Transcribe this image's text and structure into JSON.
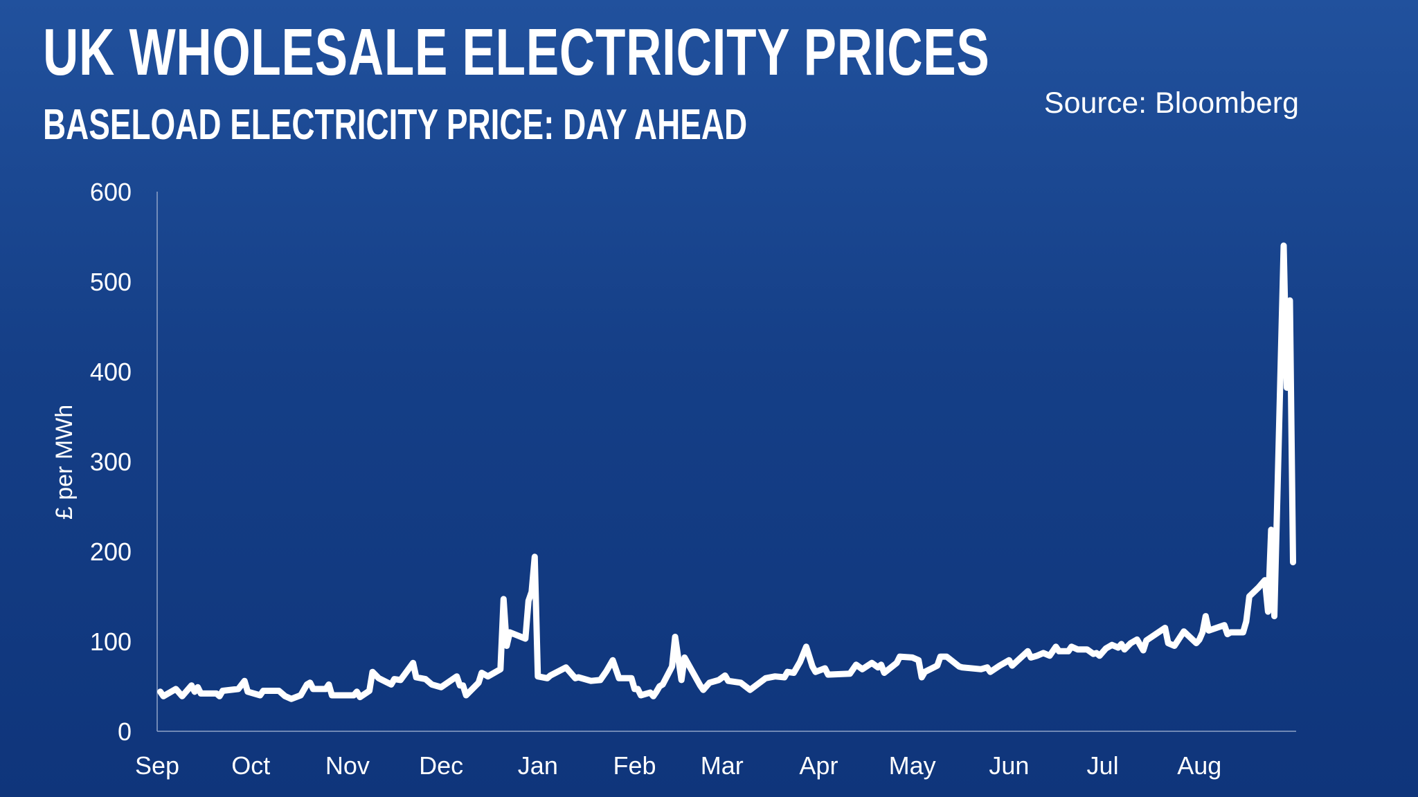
{
  "header": {
    "title": "UK WHOLESALE ELECTRICITY PRICES",
    "subtitle": "BASELOAD ELECTRICITY PRICE: DAY AHEAD",
    "source": "Source: Bloomberg"
  },
  "colors": {
    "background_top": "#21519d",
    "background_bottom": "#0f357b",
    "line": "#ffffff",
    "axis": "#8fa3c8"
  },
  "chart_data": {
    "type": "line",
    "title": "UK WHOLESALE ELECTRICITY PRICES",
    "subtitle": "BASELOAD ELECTRICITY PRICE: DAY AHEAD",
    "ylabel": "£ per MWh",
    "xlabel": "",
    "ylim": [
      0,
      600
    ],
    "xlim": [
      "2021-09-01",
      "2022-09-01"
    ],
    "yticks": [
      "0",
      "100",
      "200",
      "300",
      "400",
      "500",
      "600"
    ],
    "yticks_values": [
      0,
      100,
      200,
      300,
      400,
      500,
      600
    ],
    "xticks": [
      "Sep",
      "Oct",
      "Nov",
      "Dec",
      "Jan",
      "Feb",
      "Mar",
      "Apr",
      "May",
      "Jun",
      "Jul",
      "Aug"
    ],
    "xticks_dates": [
      "2021-09-01",
      "2021-10-01",
      "2021-11-01",
      "2021-12-01",
      "2022-01-01",
      "2022-02-01",
      "2022-03-01",
      "2022-04-01",
      "2022-05-01",
      "2022-06-01",
      "2022-07-01",
      "2022-08-01"
    ],
    "grid": false,
    "series": [
      {
        "points": [
          [
            "2021-09-02",
            44
          ],
          [
            "2021-09-03",
            39
          ],
          [
            "2021-09-07",
            47
          ],
          [
            "2021-09-09",
            39
          ],
          [
            "2021-09-12",
            51
          ],
          [
            "2021-09-13",
            44
          ],
          [
            "2021-09-14",
            49
          ],
          [
            "2021-09-15",
            42
          ],
          [
            "2021-09-20",
            42
          ],
          [
            "2021-09-21",
            39
          ],
          [
            "2021-09-22",
            45
          ],
          [
            "2021-09-27",
            47
          ],
          [
            "2021-09-29",
            56
          ],
          [
            "2021-09-30",
            44
          ],
          [
            "2021-10-04",
            40
          ],
          [
            "2021-10-05",
            45
          ],
          [
            "2021-10-10",
            45
          ],
          [
            "2021-10-12",
            39
          ],
          [
            "2021-10-14",
            36
          ],
          [
            "2021-10-17",
            40
          ],
          [
            "2021-10-19",
            52
          ],
          [
            "2021-10-20",
            54
          ],
          [
            "2021-10-21",
            47
          ],
          [
            "2021-10-25",
            47
          ],
          [
            "2021-10-26",
            52
          ],
          [
            "2021-10-27",
            40
          ],
          [
            "2021-11-03",
            40
          ],
          [
            "2021-11-04",
            44
          ],
          [
            "2021-11-05",
            38
          ],
          [
            "2021-11-08",
            45
          ],
          [
            "2021-11-09",
            66
          ],
          [
            "2021-11-11",
            59
          ],
          [
            "2021-11-15",
            52
          ],
          [
            "2021-11-16",
            58
          ],
          [
            "2021-11-18",
            57
          ],
          [
            "2021-11-22",
            76
          ],
          [
            "2021-11-23",
            60
          ],
          [
            "2021-11-26",
            58
          ],
          [
            "2021-11-28",
            52
          ],
          [
            "2021-12-01",
            49
          ],
          [
            "2021-12-06",
            61
          ],
          [
            "2021-12-07",
            51
          ],
          [
            "2021-12-08",
            51
          ],
          [
            "2021-12-09",
            40
          ],
          [
            "2021-12-13",
            54
          ],
          [
            "2021-12-14",
            65
          ],
          [
            "2021-12-16",
            61
          ],
          [
            "2021-12-20",
            69
          ],
          [
            "2021-12-21",
            147
          ],
          [
            "2021-12-22",
            95
          ],
          [
            "2021-12-23",
            110
          ],
          [
            "2021-12-28",
            103
          ],
          [
            "2021-12-29",
            145
          ],
          [
            "2021-12-30",
            155
          ],
          [
            "2021-12-31",
            194
          ],
          [
            "2022-01-01",
            61
          ],
          [
            "2022-01-04",
            59
          ],
          [
            "2022-01-05",
            62
          ],
          [
            "2022-01-10",
            71
          ],
          [
            "2022-01-11",
            67
          ],
          [
            "2022-01-13",
            59
          ],
          [
            "2022-01-14",
            60
          ],
          [
            "2022-01-18",
            56
          ],
          [
            "2022-01-21",
            57
          ],
          [
            "2022-01-23",
            67
          ],
          [
            "2022-01-25",
            79
          ],
          [
            "2022-01-27",
            59
          ],
          [
            "2022-01-31",
            59
          ],
          [
            "2022-02-01",
            47
          ],
          [
            "2022-02-02",
            47
          ],
          [
            "2022-02-03",
            40
          ],
          [
            "2022-02-06",
            43
          ],
          [
            "2022-02-07",
            39
          ],
          [
            "2022-02-08",
            44
          ],
          [
            "2022-02-09",
            50
          ],
          [
            "2022-02-10",
            52
          ],
          [
            "2022-02-13",
            72
          ],
          [
            "2022-02-14",
            105
          ],
          [
            "2022-02-16",
            57
          ],
          [
            "2022-02-17",
            82
          ],
          [
            "2022-02-22",
            51
          ],
          [
            "2022-02-23",
            46
          ],
          [
            "2022-02-25",
            54
          ],
          [
            "2022-02-28",
            57
          ],
          [
            "2022-03-02",
            62
          ],
          [
            "2022-03-03",
            56
          ],
          [
            "2022-03-07",
            54
          ],
          [
            "2022-03-10",
            46
          ],
          [
            "2022-03-15",
            59
          ],
          [
            "2022-03-18",
            61
          ],
          [
            "2022-03-21",
            60
          ],
          [
            "2022-03-22",
            66
          ],
          [
            "2022-03-24",
            65
          ],
          [
            "2022-03-26",
            77
          ],
          [
            "2022-03-28",
            94
          ],
          [
            "2022-03-30",
            72
          ],
          [
            "2022-03-31",
            66
          ],
          [
            "2022-04-03",
            70
          ],
          [
            "2022-04-04",
            63
          ],
          [
            "2022-04-11",
            64
          ],
          [
            "2022-04-13",
            74
          ],
          [
            "2022-04-15",
            69
          ],
          [
            "2022-04-18",
            76
          ],
          [
            "2022-04-20",
            71
          ],
          [
            "2022-04-21",
            74
          ],
          [
            "2022-04-22",
            65
          ],
          [
            "2022-04-26",
            76
          ],
          [
            "2022-04-27",
            83
          ],
          [
            "2022-05-01",
            82
          ],
          [
            "2022-05-03",
            79
          ],
          [
            "2022-05-04",
            60
          ],
          [
            "2022-05-05",
            66
          ],
          [
            "2022-05-09",
            73
          ],
          [
            "2022-05-10",
            83
          ],
          [
            "2022-05-12",
            83
          ],
          [
            "2022-05-16",
            72
          ],
          [
            "2022-05-17",
            71
          ],
          [
            "2022-05-23",
            69
          ],
          [
            "2022-05-25",
            71
          ],
          [
            "2022-05-26",
            66
          ],
          [
            "2022-05-29",
            73
          ],
          [
            "2022-06-01",
            79
          ],
          [
            "2022-06-02",
            73
          ],
          [
            "2022-06-07",
            89
          ],
          [
            "2022-06-08",
            82
          ],
          [
            "2022-06-10",
            84
          ],
          [
            "2022-06-12",
            87
          ],
          [
            "2022-06-14",
            84
          ],
          [
            "2022-06-16",
            94
          ],
          [
            "2022-06-17",
            89
          ],
          [
            "2022-06-20",
            89
          ],
          [
            "2022-06-21",
            94
          ],
          [
            "2022-06-23",
            91
          ],
          [
            "2022-06-26",
            91
          ],
          [
            "2022-06-28",
            86
          ],
          [
            "2022-06-29",
            87
          ],
          [
            "2022-06-30",
            84
          ],
          [
            "2022-07-02",
            92
          ],
          [
            "2022-07-04",
            96
          ],
          [
            "2022-07-06",
            93
          ],
          [
            "2022-07-07",
            97
          ],
          [
            "2022-07-08",
            91
          ],
          [
            "2022-07-10",
            98
          ],
          [
            "2022-07-12",
            102
          ],
          [
            "2022-07-14",
            90
          ],
          [
            "2022-07-15",
            101
          ],
          [
            "2022-07-21",
            115
          ],
          [
            "2022-07-22",
            98
          ],
          [
            "2022-07-24",
            95
          ],
          [
            "2022-07-27",
            111
          ],
          [
            "2022-07-31",
            98
          ],
          [
            "2022-08-01",
            102
          ],
          [
            "2022-08-02",
            110
          ],
          [
            "2022-08-03",
            128
          ],
          [
            "2022-08-04",
            112
          ],
          [
            "2022-08-09",
            118
          ],
          [
            "2022-08-10",
            108
          ],
          [
            "2022-08-11",
            110
          ],
          [
            "2022-08-15",
            110
          ],
          [
            "2022-08-16",
            122
          ],
          [
            "2022-08-17",
            150
          ],
          [
            "2022-08-20",
            160
          ],
          [
            "2022-08-22",
            168
          ],
          [
            "2022-08-23",
            133
          ],
          [
            "2022-08-24",
            224
          ],
          [
            "2022-08-25",
            128
          ],
          [
            "2022-08-28",
            540
          ],
          [
            "2022-08-29",
            382
          ],
          [
            "2022-08-30",
            479
          ],
          [
            "2022-08-31",
            188
          ]
        ]
      }
    ]
  }
}
